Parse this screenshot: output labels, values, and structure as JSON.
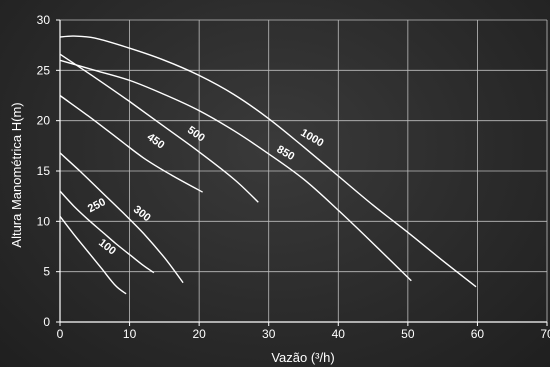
{
  "chart_data": {
    "type": "line",
    "xlabel": "Vazão (³/h)",
    "ylabel": "Altura Manométrica H(m)",
    "xlim": [
      0,
      70
    ],
    "ylim": [
      0,
      30
    ],
    "xticks": [
      0,
      10,
      20,
      30,
      40,
      50,
      60,
      70
    ],
    "yticks": [
      0,
      5,
      10,
      15,
      20,
      25,
      30
    ],
    "grid": true,
    "series": [
      {
        "name": "100",
        "x": [
          0,
          2,
          4,
          6,
          8,
          9.5
        ],
        "y": [
          10.5,
          8.7,
          7.0,
          5.3,
          3.6,
          2.8
        ]
      },
      {
        "name": "250",
        "x": [
          0,
          2,
          4,
          6,
          8,
          10,
          12,
          13.5
        ],
        "y": [
          13,
          11.5,
          10.2,
          9.0,
          7.8,
          6.7,
          5.6,
          4.9
        ]
      },
      {
        "name": "300",
        "x": [
          0,
          3,
          6,
          9,
          12,
          15,
          17.7
        ],
        "y": [
          16.8,
          14.9,
          12.9,
          10.9,
          8.8,
          6.4,
          3.9
        ]
      },
      {
        "name": "450",
        "x": [
          0,
          4,
          8,
          12,
          16,
          20.5
        ],
        "y": [
          22.5,
          20.5,
          18.4,
          16.3,
          14.6,
          12.9
        ]
      },
      {
        "name": "500",
        "x": [
          0,
          5,
          10,
          15,
          20,
          25,
          28.5
        ],
        "y": [
          26.6,
          24.3,
          21.9,
          19.4,
          16.9,
          14.2,
          11.9
        ]
      },
      {
        "name": "850",
        "x": [
          0,
          5,
          10,
          15,
          20,
          25,
          30,
          35,
          40,
          45,
          50.5
        ],
        "y": [
          26.0,
          25.0,
          24.0,
          22.6,
          21.0,
          19.0,
          16.7,
          14.2,
          11.1,
          7.8,
          4.1
        ]
      },
      {
        "name": "1000",
        "x": [
          0,
          2,
          5,
          10,
          15,
          20,
          25,
          30,
          35,
          40,
          45,
          50,
          55,
          59.8
        ],
        "y": [
          28.3,
          28.4,
          28.2,
          27.2,
          26.0,
          24.5,
          22.6,
          20.2,
          17.4,
          14.5,
          11.6,
          8.9,
          6.1,
          3.5
        ]
      }
    ],
    "curve_labels": [
      {
        "text": "100",
        "x": 6.5,
        "y": 7.2,
        "angle": 38
      },
      {
        "text": "250",
        "x": 5.5,
        "y": 11.3,
        "angle": -28
      },
      {
        "text": "300",
        "x": 11.5,
        "y": 10.5,
        "angle": 38
      },
      {
        "text": "450",
        "x": 13.5,
        "y": 17.7,
        "angle": 35
      },
      {
        "text": "500",
        "x": 19.3,
        "y": 18.4,
        "angle": 35
      },
      {
        "text": "850",
        "x": 32.2,
        "y": 16.5,
        "angle": 30
      },
      {
        "text": "1000",
        "x": 36.0,
        "y": 18.0,
        "angle": 30
      }
    ]
  }
}
